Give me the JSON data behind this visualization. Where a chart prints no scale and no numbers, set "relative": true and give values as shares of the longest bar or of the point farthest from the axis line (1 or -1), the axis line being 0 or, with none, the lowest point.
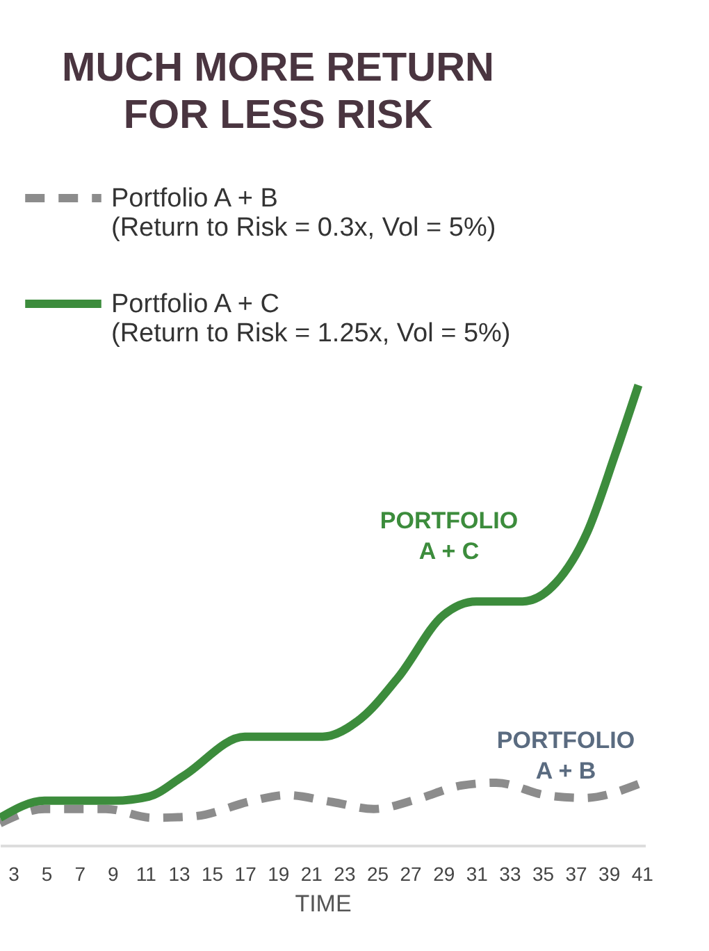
{
  "chart_data": {
    "type": "line",
    "title": "MUCH MORE RETURN\nFOR LESS RISK",
    "xlabel": "TIME",
    "relative": true,
    "xlim": [
      2.2,
      41.2
    ],
    "xticks": [
      3,
      5,
      7,
      9,
      11,
      13,
      15,
      17,
      19,
      21,
      23,
      25,
      27,
      29,
      31,
      33,
      35,
      37,
      39,
      41
    ],
    "grid": false,
    "legend": "top left",
    "marker": "none",
    "series": [
      {
        "name": "Portfolio A + B\n(Return to Risk = 0.3x, Vol = 5%)",
        "color": "#8c8c8c",
        "line_style": "dashed",
        "x": [
          2.2,
          4.9,
          8.6,
          11.4,
          13.9,
          17.5,
          19.5,
          22.3,
          24.8,
          27.4,
          30.1,
          32.2,
          35.2,
          37.5,
          40.8
        ],
        "values": [
          0.048,
          0.079,
          0.079,
          0.06,
          0.063,
          0.097,
          0.109,
          0.094,
          0.079,
          0.1,
          0.13,
          0.136,
          0.109,
          0.103,
          0.133
        ]
      },
      {
        "name": "Portfolio A + C\n(Return to Risk = 1.25x, Vol = 5%)",
        "color": "#3c8c3c",
        "line_style": "solid",
        "x": [
          2.2,
          4.9,
          9.1,
          11.2,
          13.3,
          17,
          21.7,
          24,
          26.3,
          29,
          31,
          33.8,
          35.8,
          37.7,
          39.4,
          40.8
        ],
        "values": [
          0.06,
          0.097,
          0.097,
          0.106,
          0.151,
          0.236,
          0.236,
          0.275,
          0.366,
          0.5,
          0.53,
          0.53,
          0.57,
          0.68,
          0.85,
          1.0
        ]
      }
    ],
    "annotations": [
      "PORTFOLIO\nA + C",
      "PORTFOLIO\nA + B"
    ]
  }
}
